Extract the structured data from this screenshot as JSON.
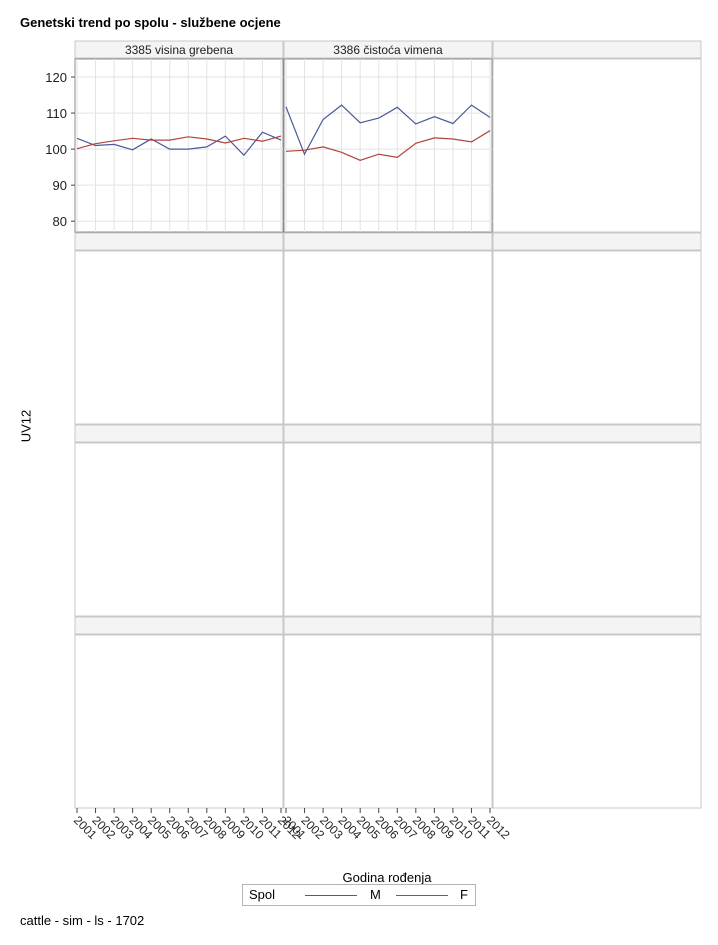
{
  "header": {
    "title": "Genetski trend po spolu - službene ocjene"
  },
  "footer": {
    "text": "cattle - sim - ls - 1702"
  },
  "colors": {
    "M": "#4a5a9a",
    "F": "#b0443a",
    "grid": "#e3e3e3",
    "border": "#c8c8c8",
    "panel_border": "#8c8c8c"
  },
  "chart_data": {
    "type": "line",
    "title": "Genetski trend po spolu - službene ocjene",
    "xlabel": "Godina rođenja",
    "ylabel": "UV12",
    "ylim": [
      77,
      125
    ],
    "yticks": [
      80,
      90,
      100,
      110,
      120
    ],
    "x": [
      "2001",
      "2002",
      "2003",
      "2004",
      "2005",
      "2006",
      "2007",
      "2008",
      "2009",
      "2010",
      "2011",
      "2012"
    ],
    "grid": true,
    "legend": {
      "title": "Spol",
      "position": "bottom",
      "entries": [
        "M",
        "F"
      ]
    },
    "panels": [
      {
        "label": "3385 visina grebena",
        "series": [
          {
            "name": "M",
            "values": [
              103.0,
              101.0,
              101.3,
              99.8,
              102.8,
              100.0,
              100.0,
              100.6,
              103.6,
              98.3,
              104.7,
              102.5
            ]
          },
          {
            "name": "F",
            "values": [
              100.1,
              101.5,
              102.3,
              103.0,
              102.5,
              102.5,
              103.4,
              102.8,
              101.7,
              103.0,
              102.2,
              103.6
            ]
          }
        ]
      },
      {
        "label": "3386 čistoća vimena",
        "series": [
          {
            "name": "M",
            "values": [
              111.7,
              98.6,
              108.2,
              112.2,
              107.3,
              108.6,
              111.6,
              107.0,
              109.0,
              107.1,
              112.2,
              108.8
            ]
          },
          {
            "name": "F",
            "values": [
              99.4,
              99.7,
              100.6,
              99.1,
              96.9,
              98.6,
              97.7,
              101.6,
              103.1,
              102.8,
              102.0,
              105.1
            ]
          }
        ]
      },
      {
        "label": "",
        "series": []
      },
      {
        "label": "",
        "series": []
      },
      {
        "label": "",
        "series": []
      },
      {
        "label": "",
        "series": []
      },
      {
        "label": "",
        "series": []
      },
      {
        "label": "",
        "series": []
      },
      {
        "label": "",
        "series": []
      },
      {
        "label": "",
        "series": []
      },
      {
        "label": "",
        "series": []
      },
      {
        "label": "",
        "series": []
      }
    ]
  }
}
